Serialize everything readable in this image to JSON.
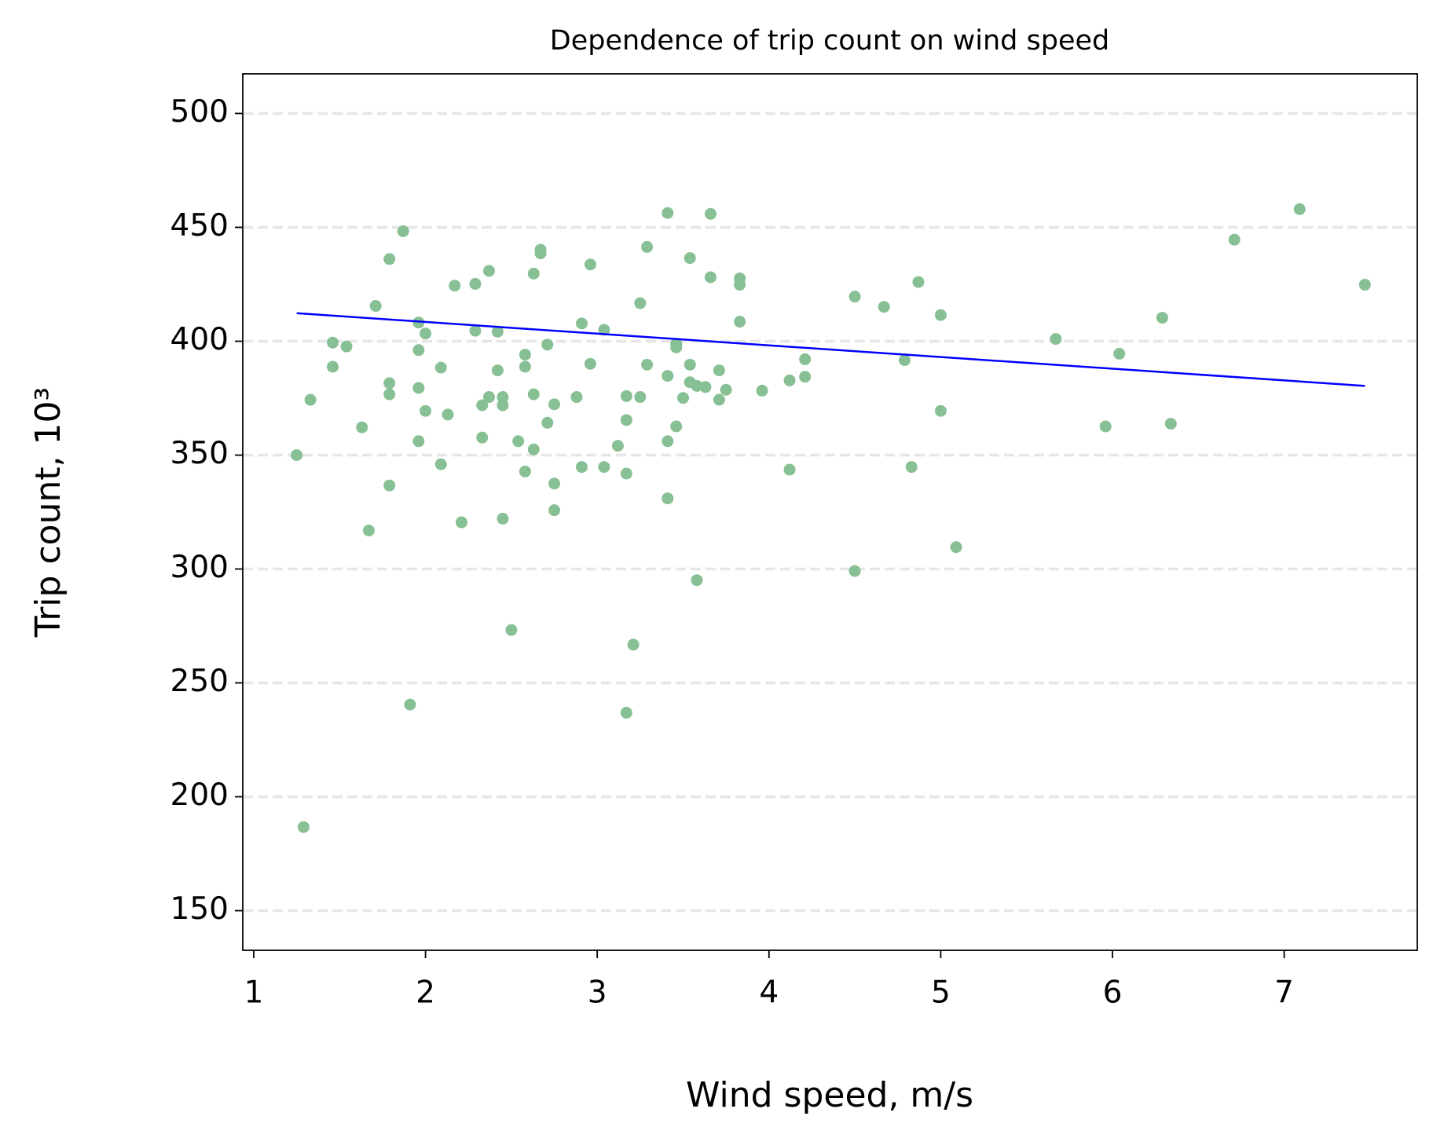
{
  "chart_data": {
    "type": "scatter",
    "title": "Dependence of trip count on wind speed",
    "x_label": "Wind speed, m/s",
    "y_label": "Trip count, 10³",
    "xlim": [
      0.936,
      7.775
    ],
    "xticks": [
      1,
      2,
      3,
      4,
      5,
      6,
      7
    ],
    "ylim": [
      132.6,
      517.4
    ],
    "yticks": [
      150,
      200,
      250,
      300,
      350,
      400,
      450,
      500
    ],
    "grid": true,
    "scatter": {
      "color": "#88c095",
      "x": [
        1.25,
        1.29,
        1.33,
        1.46,
        1.46,
        1.54,
        1.63,
        1.67,
        1.71,
        1.79,
        1.79,
        1.79,
        1.79,
        1.87,
        1.91,
        1.96,
        1.96,
        1.96,
        1.96,
        2.0,
        2.0,
        2.09,
        2.09,
        2.13,
        2.17,
        2.21,
        2.29,
        2.29,
        2.33,
        2.33,
        2.37,
        2.37,
        2.42,
        2.42,
        2.45,
        2.45,
        2.45,
        2.5,
        2.54,
        2.58,
        2.58,
        2.58,
        2.63,
        2.63,
        2.63,
        2.67,
        2.67,
        2.71,
        2.71,
        2.75,
        2.75,
        2.75,
        2.88,
        2.91,
        2.91,
        2.96,
        2.96,
        3.04,
        3.04,
        3.12,
        3.17,
        3.17,
        3.17,
        3.17,
        3.21,
        3.25,
        3.25,
        3.29,
        3.29,
        3.41,
        3.41,
        3.41,
        3.41,
        3.46,
        3.46,
        3.46,
        3.5,
        3.54,
        3.54,
        3.54,
        3.58,
        3.58,
        3.63,
        3.66,
        3.66,
        3.71,
        3.71,
        3.75,
        3.83,
        3.83,
        3.83,
        3.96,
        4.12,
        4.12,
        4.21,
        4.21,
        4.5,
        4.5,
        4.67,
        4.79,
        4.83,
        4.87,
        5.0,
        5.0,
        5.09,
        5.67,
        5.96,
        6.04,
        6.29,
        6.34,
        6.71,
        7.09,
        7.47
      ],
      "values": [
        350.0,
        186.7,
        374.3,
        399.4,
        388.8,
        397.7,
        362.2,
        316.9,
        415.5,
        436.1,
        381.6,
        376.7,
        336.7,
        448.3,
        240.5,
        408.2,
        396.1,
        379.5,
        356.1,
        403.4,
        369.4,
        388.4,
        346.0,
        367.8,
        424.4,
        320.5,
        425.2,
        404.6,
        371.9,
        357.7,
        430.9,
        375.5,
        404.2,
        387.2,
        375.5,
        371.9,
        322.1,
        273.2,
        356.1,
        394.1,
        388.8,
        342.8,
        429.7,
        376.7,
        352.5,
        440.2,
        438.6,
        398.5,
        364.2,
        372.3,
        337.5,
        325.8,
        375.5,
        407.8,
        344.8,
        433.7,
        390.1,
        405.0,
        344.8,
        354.1,
        375.9,
        365.4,
        341.9,
        236.9,
        266.8,
        416.7,
        375.5,
        441.4,
        389.7,
        456.3,
        384.8,
        356.1,
        331.0,
        398.9,
        397.3,
        362.6,
        375.1,
        436.5,
        389.7,
        382.0,
        380.4,
        295.1,
        379.9,
        455.9,
        428.1,
        387.2,
        374.3,
        378.7,
        427.6,
        424.8,
        408.6,
        378.3,
        382.8,
        343.6,
        392.1,
        384.4,
        419.6,
        299.1,
        415.1,
        391.7,
        344.8,
        426.0,
        411.5,
        369.4,
        309.6,
        401.0,
        362.6,
        394.5,
        410.3,
        363.8,
        444.6,
        458.0,
        424.8
      ]
    },
    "trend_line": {
      "color": "#0000ff",
      "x": [
        1.25,
        7.47
      ],
      "values": [
        412.3,
        380.4
      ]
    }
  }
}
